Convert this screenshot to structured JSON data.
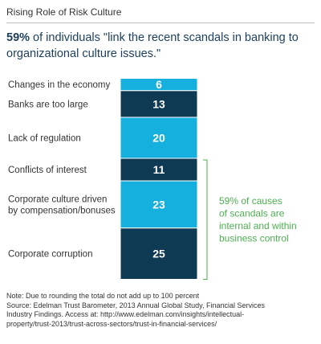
{
  "title": "Rising Role of Risk Culture",
  "headline": {
    "highlight": "59%",
    "text": " of individuals \"link the recent scandals in banking to organizational culture issues.\""
  },
  "chart_data": {
    "type": "bar",
    "orientation": "stacked-column",
    "categories": [
      "Changes in the economy",
      "Banks are too large",
      "Lack of regulation",
      "Conflicts of interest",
      "Corporate culture driven by compensation/bonuses",
      "Corporate corruption"
    ],
    "values": [
      6,
      13,
      20,
      11,
      23,
      25
    ],
    "category_lines": [
      [
        "Changes in the economy"
      ],
      [
        "Banks are too large"
      ],
      [
        "Lack of regulation"
      ],
      [
        "Conflicts of interest"
      ],
      [
        "Corporate culture driven",
        "by compensation/bonuses"
      ],
      [
        "Corporate corruption"
      ]
    ],
    "data_labels": [
      "6",
      "13",
      "20",
      "11",
      "23",
      "25"
    ],
    "colors": [
      "#16b0de",
      "#0f3a53",
      "#16b0de",
      "#0f3a53",
      "#16b0de",
      "#0f3a53"
    ],
    "bracket_start_index": 3,
    "annotation_lines": [
      "59% of causes",
      "of scandals are",
      "internal and within",
      "business control"
    ],
    "annotation_color": "#4caf50",
    "label_color": "#333333",
    "value_label_color": "#ffffff"
  },
  "note": {
    "lines": [
      "Note: Due to rounding the total do not add up to 100 percent",
      "Source: Edelman Trust Barometer, 2013 Annual Global Study, Financial Services",
      "Industry Findings. Access at: http://www.edelman.com/insights/intellectual-",
      "property/trust-2013/trust-across-sectors/trust-in-financial-services/"
    ]
  }
}
